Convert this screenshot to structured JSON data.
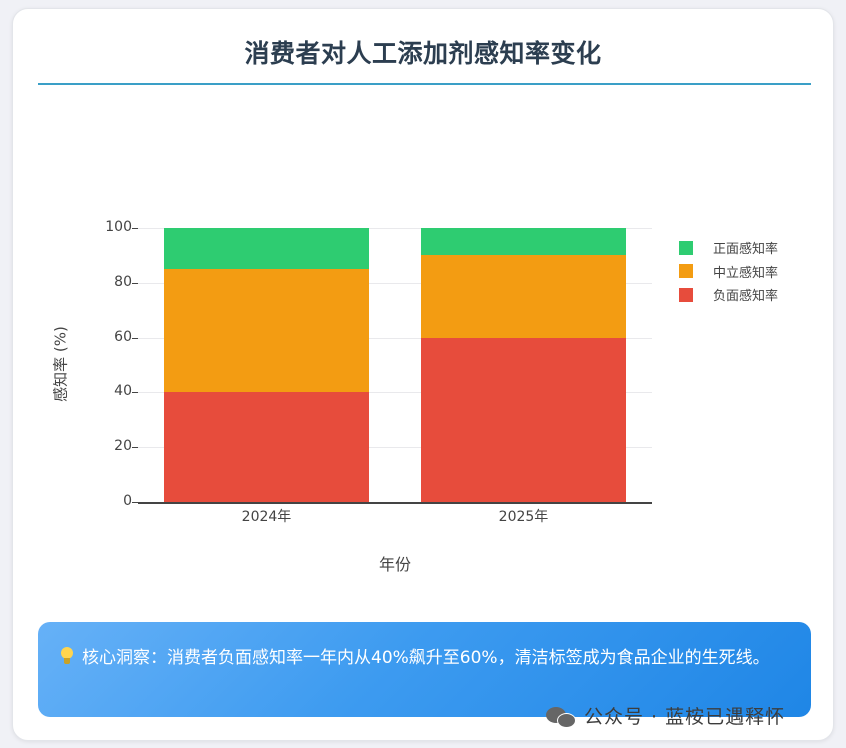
{
  "card": {
    "title": "消费者对人工添加剂感知率变化"
  },
  "chart_data": {
    "type": "bar",
    "stacked": true,
    "title": "消费者对人工添加剂感知率变化",
    "xlabel": "年份",
    "ylabel": "感知率 (%)",
    "categories": [
      "2024年",
      "2025年"
    ],
    "series": [
      {
        "name": "负面感知率",
        "color": "#e74c3c",
        "values": [
          40,
          60
        ]
      },
      {
        "name": "中立感知率",
        "color": "#f39c12",
        "values": [
          45,
          30
        ]
      },
      {
        "name": "正面感知率",
        "color": "#2ecc71",
        "values": [
          15,
          10
        ]
      }
    ],
    "ylim": [
      0,
      100
    ],
    "yticks": [
      "0",
      "20",
      "40",
      "60",
      "80",
      "100"
    ],
    "grid": true,
    "legend_position": "right",
    "legend_order": [
      "正面感知率",
      "中立感知率",
      "负面感知率"
    ]
  },
  "insight": {
    "icon": "lightbulb-icon",
    "text": "核心洞察：消费者负面感知率一年内从40%飙升至60%，清洁标签成为食品企业的生死线。"
  },
  "watermark": {
    "icon": "wechat-icon",
    "text": "公众号 · 蓝桉已遇释怀"
  }
}
